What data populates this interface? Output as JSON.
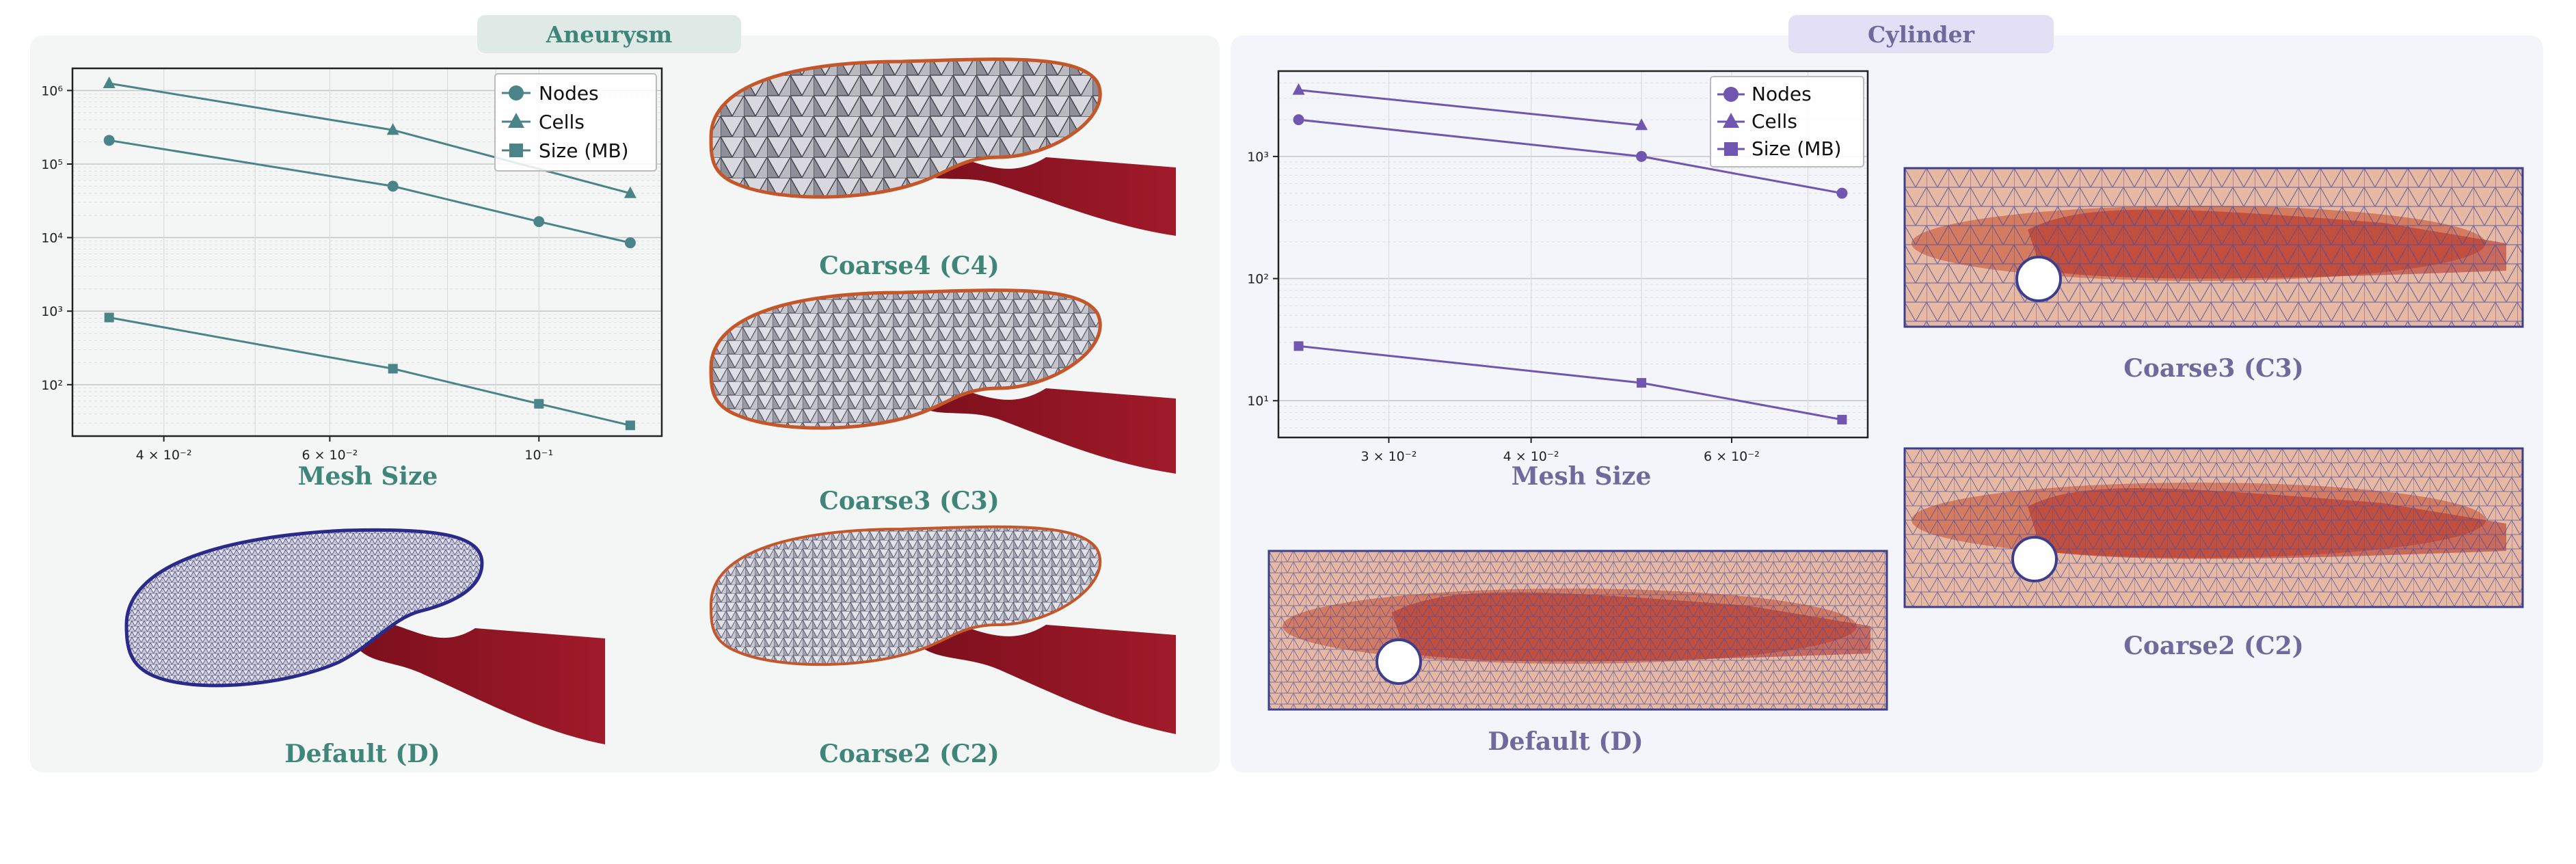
{
  "panels": {
    "aneurysm": {
      "title": "Aneurysm",
      "colors": {
        "accent": "#4a8488",
        "title": "#3f8679"
      },
      "chart_caption": "Mesh Size",
      "captions": {
        "c4": "Coarse4 (C4)",
        "c3": "Coarse3 (C3)",
        "c2": "Coarse2 (C2)",
        "d": "Default (D)"
      }
    },
    "cylinder": {
      "title": "Cylinder",
      "colors": {
        "accent": "#7056b0",
        "title": "#6e6a9c"
      },
      "chart_caption": "Mesh Size",
      "captions": {
        "c3": "Coarse3 (C3)",
        "c2": "Coarse2 (C2)",
        "d": "Default (D)"
      }
    }
  },
  "chart_data": [
    {
      "type": "line",
      "x": [
        0.035,
        0.07,
        0.1,
        0.125
      ],
      "series": [
        {
          "name": "Nodes",
          "marker": "circle",
          "values": [
            210000,
            50000,
            16500,
            8500
          ]
        },
        {
          "name": "Cells",
          "marker": "triangle",
          "values": [
            1250000,
            290000,
            null,
            40000
          ]
        },
        {
          "name": "Size (MB)",
          "marker": "square",
          "values": [
            820,
            165,
            55,
            28
          ]
        }
      ],
      "xscale": "log",
      "yscale": "log",
      "xlim": [
        0.032,
        0.135
      ],
      "ylim": [
        20,
        2000000
      ],
      "xticks": [
        {
          "v": 0.04,
          "label": "4 × 10⁻²"
        },
        {
          "v": 0.06,
          "label": "6 × 10⁻²"
        },
        {
          "v": 0.1,
          "label": "10⁻¹"
        }
      ],
      "yticks": [
        {
          "v": 100,
          "label": "10²"
        },
        {
          "v": 1000,
          "label": "10³"
        },
        {
          "v": 10000,
          "label": "10⁴"
        },
        {
          "v": 100000,
          "label": "10⁵"
        },
        {
          "v": 1000000,
          "label": "10⁶"
        }
      ],
      "grid": true,
      "legend": "top-right",
      "color": "#4a8488"
    },
    {
      "type": "line",
      "x": [
        0.025,
        0.05,
        0.075
      ],
      "series": [
        {
          "name": "Nodes",
          "marker": "circle",
          "values": [
            2000,
            1000,
            500
          ]
        },
        {
          "name": "Cells",
          "marker": "triangle",
          "values": [
            3500,
            1800,
            null
          ]
        },
        {
          "name": "Size (MB)",
          "marker": "square",
          "values": [
            28,
            14,
            7
          ]
        }
      ],
      "xscale": "log",
      "yscale": "log",
      "xlim": [
        0.024,
        0.079
      ],
      "ylim": [
        5,
        5000
      ],
      "xticks": [
        {
          "v": 0.03,
          "label": "3 × 10⁻²"
        },
        {
          "v": 0.04,
          "label": "4 × 10⁻²"
        },
        {
          "v": 0.06,
          "label": "6 × 10⁻²"
        }
      ],
      "yticks": [
        {
          "v": 10,
          "label": "10¹"
        },
        {
          "v": 100,
          "label": "10²"
        },
        {
          "v": 1000,
          "label": "10³"
        }
      ],
      "grid": true,
      "legend": "top-right",
      "color": "#7056b0"
    }
  ]
}
